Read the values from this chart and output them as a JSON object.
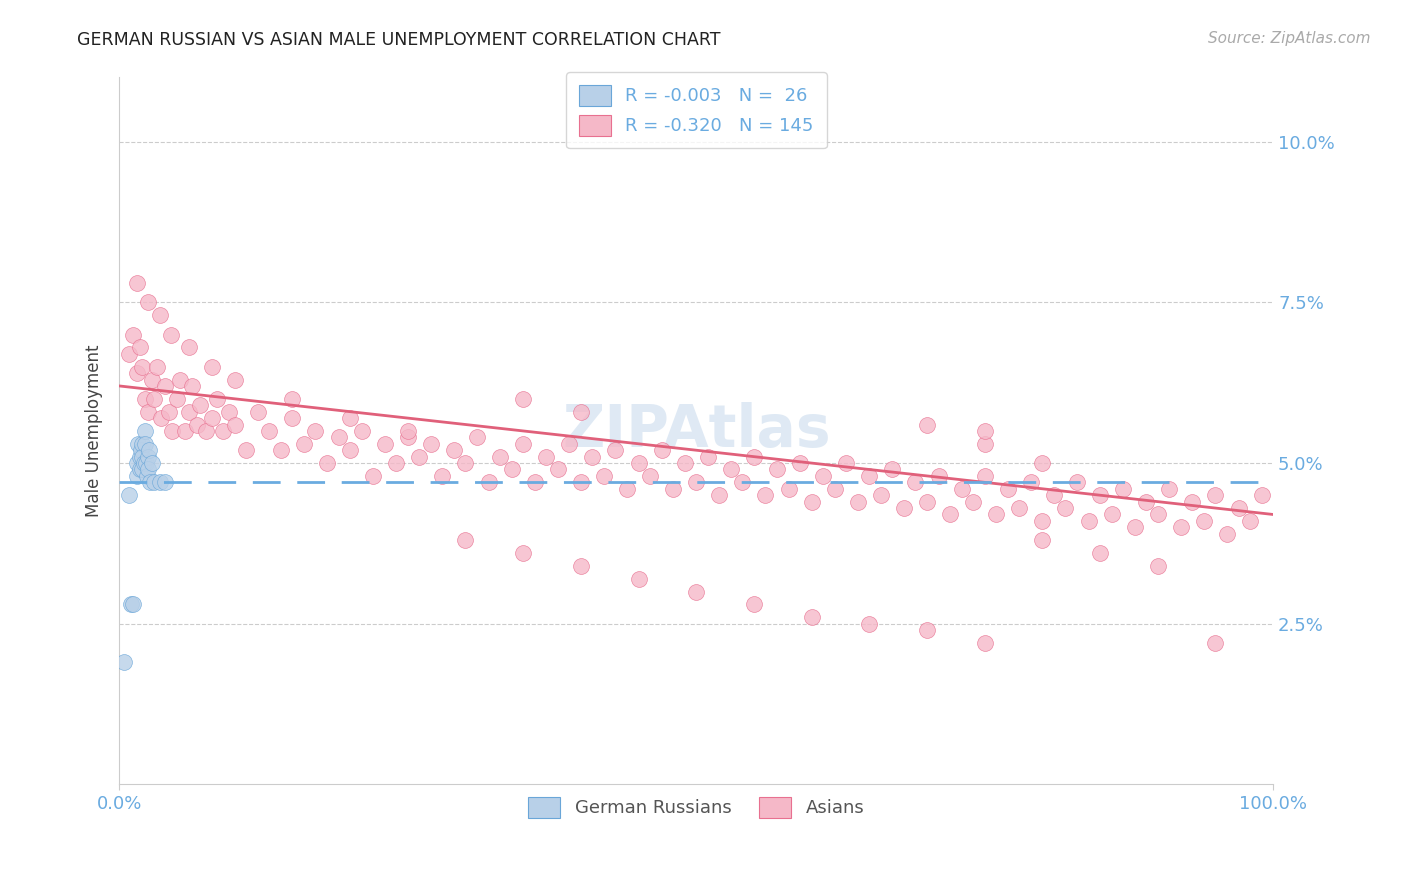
{
  "title": "GERMAN RUSSIAN VS ASIAN MALE UNEMPLOYMENT CORRELATION CHART",
  "source": "Source: ZipAtlas.com",
  "ylabel": "Male Unemployment",
  "ytick_labels": [
    "2.5%",
    "5.0%",
    "7.5%",
    "10.0%"
  ],
  "ytick_values": [
    0.025,
    0.05,
    0.075,
    0.1
  ],
  "xlim": [
    0.0,
    1.0
  ],
  "ylim": [
    0.0,
    0.11
  ],
  "color_blue_fill": "#b8d0e8",
  "color_pink_fill": "#f5b8c8",
  "color_blue_edge": "#6aa6d8",
  "color_pink_edge": "#e87090",
  "color_blue_line": "#6aabe0",
  "color_pink_line": "#e0607a",
  "color_axis_text": "#6aabe0",
  "color_grid": "#cccccc",
  "watermark_color": "#c5d8ec",
  "gr_line_y0": 0.047,
  "gr_line_y1": 0.047,
  "asian_line_y0": 0.062,
  "asian_line_y1": 0.042,
  "german_russian_x": [
    0.004,
    0.008,
    0.01,
    0.012,
    0.015,
    0.015,
    0.016,
    0.018,
    0.018,
    0.019,
    0.02,
    0.02,
    0.02,
    0.021,
    0.022,
    0.022,
    0.023,
    0.024,
    0.025,
    0.025,
    0.026,
    0.027,
    0.028,
    0.03,
    0.035,
    0.04
  ],
  "german_russian_y": [
    0.019,
    0.045,
    0.028,
    0.028,
    0.05,
    0.048,
    0.053,
    0.051,
    0.049,
    0.052,
    0.053,
    0.051,
    0.049,
    0.05,
    0.055,
    0.053,
    0.05,
    0.048,
    0.051,
    0.049,
    0.052,
    0.047,
    0.05,
    0.047,
    0.047,
    0.047
  ],
  "asian_x": [
    0.008,
    0.012,
    0.015,
    0.018,
    0.02,
    0.022,
    0.025,
    0.028,
    0.03,
    0.033,
    0.036,
    0.04,
    0.043,
    0.046,
    0.05,
    0.053,
    0.057,
    0.06,
    0.063,
    0.067,
    0.07,
    0.075,
    0.08,
    0.085,
    0.09,
    0.095,
    0.1,
    0.11,
    0.12,
    0.13,
    0.14,
    0.15,
    0.16,
    0.17,
    0.18,
    0.19,
    0.2,
    0.21,
    0.22,
    0.23,
    0.24,
    0.25,
    0.26,
    0.27,
    0.28,
    0.29,
    0.3,
    0.31,
    0.32,
    0.33,
    0.34,
    0.35,
    0.36,
    0.37,
    0.38,
    0.39,
    0.4,
    0.41,
    0.42,
    0.43,
    0.44,
    0.45,
    0.46,
    0.47,
    0.48,
    0.49,
    0.5,
    0.51,
    0.52,
    0.53,
    0.54,
    0.55,
    0.56,
    0.57,
    0.58,
    0.59,
    0.6,
    0.61,
    0.62,
    0.63,
    0.64,
    0.65,
    0.66,
    0.67,
    0.68,
    0.69,
    0.7,
    0.71,
    0.72,
    0.73,
    0.74,
    0.75,
    0.76,
    0.77,
    0.78,
    0.79,
    0.8,
    0.81,
    0.82,
    0.83,
    0.84,
    0.85,
    0.86,
    0.87,
    0.88,
    0.89,
    0.9,
    0.91,
    0.92,
    0.93,
    0.94,
    0.95,
    0.96,
    0.97,
    0.98,
    0.99,
    0.015,
    0.025,
    0.035,
    0.045,
    0.06,
    0.08,
    0.1,
    0.15,
    0.2,
    0.25,
    0.3,
    0.35,
    0.4,
    0.45,
    0.5,
    0.55,
    0.6,
    0.65,
    0.7,
    0.75,
    0.8,
    0.85,
    0.9,
    0.95,
    0.7,
    0.75,
    0.8,
    0.35,
    0.4,
    0.75
  ],
  "asian_y": [
    0.067,
    0.07,
    0.064,
    0.068,
    0.065,
    0.06,
    0.058,
    0.063,
    0.06,
    0.065,
    0.057,
    0.062,
    0.058,
    0.055,
    0.06,
    0.063,
    0.055,
    0.058,
    0.062,
    0.056,
    0.059,
    0.055,
    0.057,
    0.06,
    0.055,
    0.058,
    0.056,
    0.052,
    0.058,
    0.055,
    0.052,
    0.057,
    0.053,
    0.055,
    0.05,
    0.054,
    0.052,
    0.055,
    0.048,
    0.053,
    0.05,
    0.054,
    0.051,
    0.053,
    0.048,
    0.052,
    0.05,
    0.054,
    0.047,
    0.051,
    0.049,
    0.053,
    0.047,
    0.051,
    0.049,
    0.053,
    0.047,
    0.051,
    0.048,
    0.052,
    0.046,
    0.05,
    0.048,
    0.052,
    0.046,
    0.05,
    0.047,
    0.051,
    0.045,
    0.049,
    0.047,
    0.051,
    0.045,
    0.049,
    0.046,
    0.05,
    0.044,
    0.048,
    0.046,
    0.05,
    0.044,
    0.048,
    0.045,
    0.049,
    0.043,
    0.047,
    0.044,
    0.048,
    0.042,
    0.046,
    0.044,
    0.048,
    0.042,
    0.046,
    0.043,
    0.047,
    0.041,
    0.045,
    0.043,
    0.047,
    0.041,
    0.045,
    0.042,
    0.046,
    0.04,
    0.044,
    0.042,
    0.046,
    0.04,
    0.044,
    0.041,
    0.045,
    0.039,
    0.043,
    0.041,
    0.045,
    0.078,
    0.075,
    0.073,
    0.07,
    0.068,
    0.065,
    0.063,
    0.06,
    0.057,
    0.055,
    0.038,
    0.036,
    0.034,
    0.032,
    0.03,
    0.028,
    0.026,
    0.025,
    0.024,
    0.022,
    0.038,
    0.036,
    0.034,
    0.022,
    0.056,
    0.053,
    0.05,
    0.06,
    0.058,
    0.055
  ]
}
